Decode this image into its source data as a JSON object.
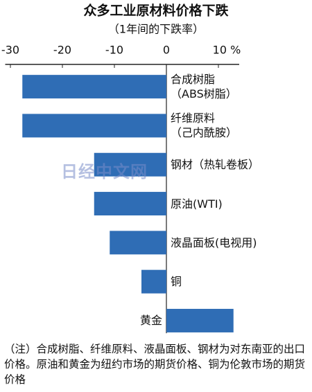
{
  "chart_data": {
    "type": "barh",
    "title": "众多工业原材料价格下跌",
    "subtitle": "（1年间的下跌率）",
    "categories": [
      "合成树脂\n（ABS树脂）",
      "纤维原料\n（己内酰胺）",
      "钢材（热轧卷板）",
      "原油(WTI)",
      "液晶面板(电视用)",
      "铜",
      "黄金"
    ],
    "values": [
      -27.7,
      -27.7,
      -13.9,
      -13.9,
      -10.9,
      -4.8,
      12.9
    ],
    "color": "#2f6db5",
    "xlim": [
      -31,
      14
    ],
    "xticks": [
      -30,
      -20,
      -10,
      0,
      {
        "value": 10,
        "label": "10 %"
      }
    ],
    "watermark": "日经中文网",
    "note": "（注）合成树脂、纤维原料、液晶面板、钢材为对东南亚的出口价格。原油和黄金为纽约市场的期货价格、铜为伦敦市场的期货价格"
  }
}
